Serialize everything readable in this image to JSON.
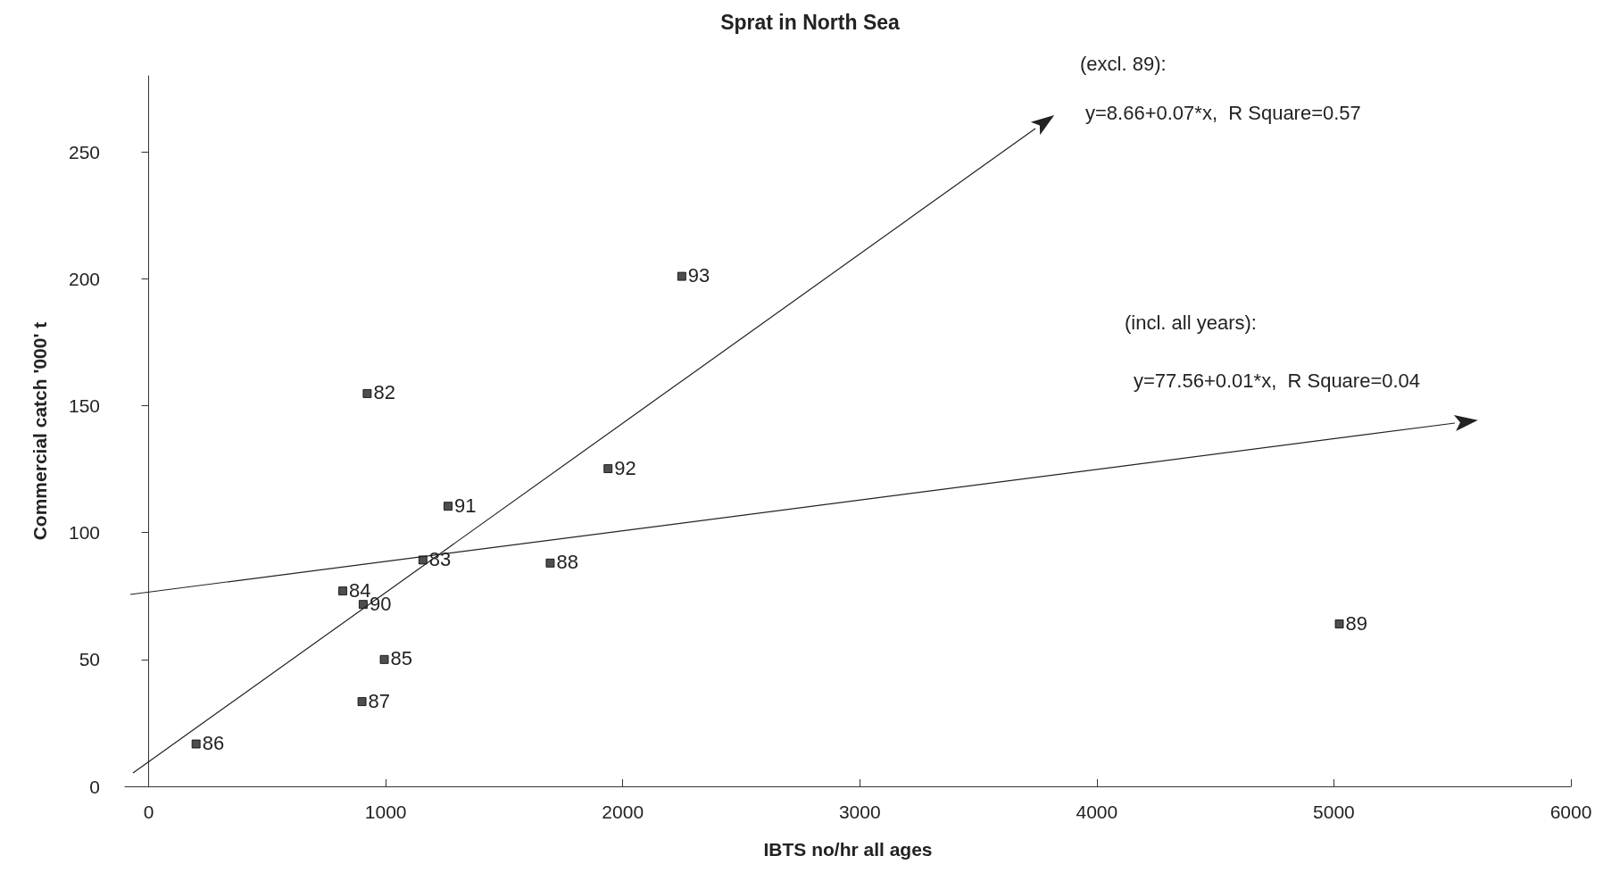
{
  "chart_data": {
    "type": "scatter",
    "title": "Sprat in North Sea",
    "xlabel": "IBTS no/hr all ages",
    "ylabel": "Commercial catch '000' t",
    "x": [
      922,
      1157,
      819,
      994,
      200,
      900,
      1694,
      5023,
      905,
      1263,
      1938,
      2249
    ],
    "series": [
      {
        "color": "#222222",
        "marker": "square",
        "values": [
          154.8,
          89.2,
          77,
          50,
          16.7,
          33.4,
          88,
          64,
          71.7,
          110.4,
          125.2,
          201
        ]
      }
    ],
    "annotations": [
      {
        "text": "82",
        "x": 922,
        "y": 154.8
      },
      {
        "text": "83",
        "x": 1157,
        "y": 89.2
      },
      {
        "text": "84",
        "x": 819,
        "y": 77
      },
      {
        "text": "85",
        "x": 994,
        "y": 50
      },
      {
        "text": "86",
        "x": 200,
        "y": 16.7
      },
      {
        "text": "87",
        "x": 900,
        "y": 33.4
      },
      {
        "text": "88",
        "x": 1694,
        "y": 88
      },
      {
        "text": "89",
        "x": 5023,
        "y": 64
      },
      {
        "text": "90",
        "x": 905,
        "y": 71.7
      },
      {
        "text": "91",
        "x": 1263,
        "y": 110.4
      },
      {
        "text": "92",
        "x": 1938,
        "y": 125.2
      },
      {
        "text": "93",
        "x": 2249,
        "y": 201
      },
      "(excl. 89):",
      "y=8.66+0.07*x,  R Square=0.57",
      "(incl. all years):",
      "y=77.56+0.01*x,  R Square=0.04"
    ],
    "xlim": [
      -100,
      6000
    ],
    "ylim": [
      0,
      280
    ],
    "xticks": [
      0,
      1000,
      2000,
      3000,
      4000,
      5000,
      6000
    ],
    "yticks": [
      0,
      50,
      100,
      150,
      200,
      250
    ],
    "grid": false
  }
}
